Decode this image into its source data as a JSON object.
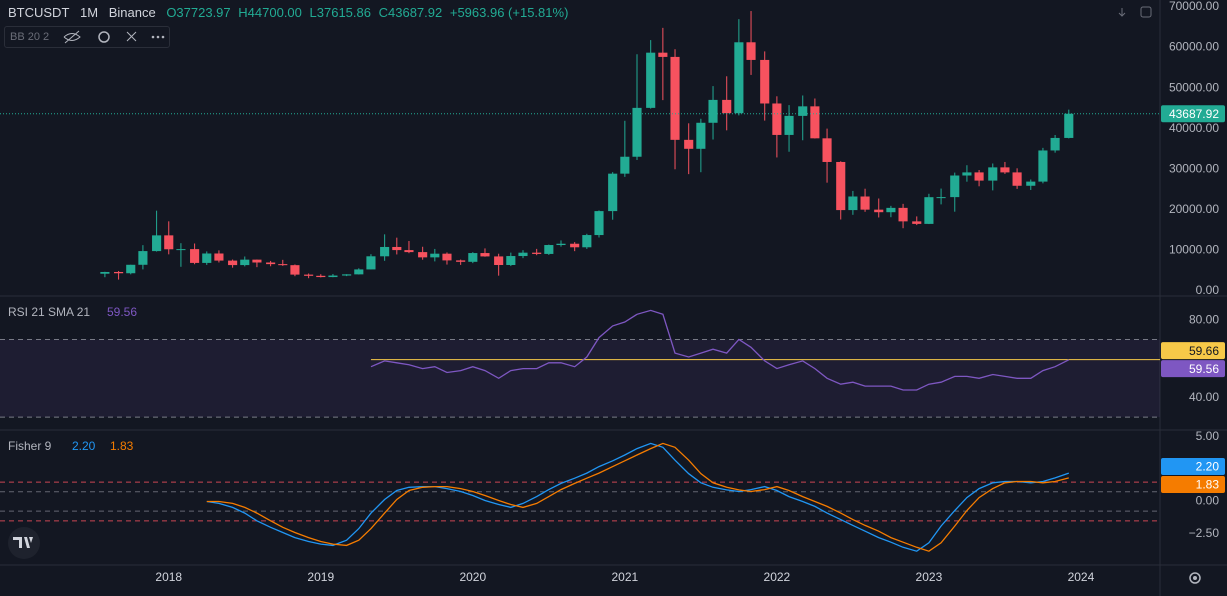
{
  "header": {
    "symbol": "BTCUSDT",
    "interval": "1M",
    "exchange": "Binance",
    "ohlc": [
      "O37723.97",
      "H44700.00",
      "L37615.86",
      "C43687.92"
    ],
    "change": "+5963.96 (+15.81%)",
    "indicator": "BB 20 2"
  },
  "chart_data": [
    {
      "type": "candlestick",
      "up_color": "#22ab94",
      "down_color": "#f7525f",
      "x": [
        2017.58,
        2017.67,
        2017.75,
        2017.83,
        2017.92,
        2018,
        2018.08,
        2018.17,
        2018.25,
        2018.33,
        2018.42,
        2018.5,
        2018.58,
        2018.67,
        2018.75,
        2018.83,
        2018.92,
        2019,
        2019.08,
        2019.17,
        2019.25,
        2019.33,
        2019.42,
        2019.5,
        2019.58,
        2019.67,
        2019.75,
        2019.83,
        2019.92,
        2020,
        2020.08,
        2020.17,
        2020.25,
        2020.33,
        2020.42,
        2020.5,
        2020.58,
        2020.67,
        2020.75,
        2020.83,
        2020.92,
        2021,
        2021.08,
        2021.17,
        2021.25,
        2021.33,
        2021.42,
        2021.5,
        2021.58,
        2021.67,
        2021.75,
        2021.83,
        2021.92,
        2022,
        2022.08,
        2022.17,
        2022.25,
        2022.33,
        2022.42,
        2022.5,
        2022.58,
        2022.67,
        2022.75,
        2022.83,
        2022.92,
        2023,
        2023.08,
        2023.17,
        2023.25,
        2023.33,
        2023.42,
        2023.5,
        2023.58,
        2023.67,
        2023.75,
        2023.83,
        2023.92
      ],
      "open": [
        4261,
        4689,
        4378,
        6463,
        9838,
        13716,
        10285,
        10326,
        6923,
        9246,
        7494,
        6391,
        7730,
        7025,
        6626,
        6371,
        4041,
        3743,
        3437,
        3813,
        4103,
        5320,
        8555,
        10854,
        10085,
        9588,
        8293,
        9199,
        7546,
        7195,
        9353,
        8524,
        6410,
        8620,
        9448,
        9138,
        11335,
        11649,
        10776,
        13791,
        19695,
        28923,
        33092,
        45135,
        58740,
        57694,
        37253,
        35045,
        41461,
        47100,
        43824,
        61299,
        56950,
        46216,
        38466,
        43160,
        45510,
        37630,
        31801,
        19942,
        23293,
        20050,
        19423,
        20490,
        17164,
        16542,
        23125,
        23141,
        28465,
        29233,
        27210,
        30472,
        29232,
        25940,
        26962,
        34639,
        37723.97
      ],
      "high": [
        4745,
        4939,
        6470,
        11300,
        19798,
        17176,
        11786,
        11710,
        9759,
        10020,
        7754,
        8507,
        7760,
        7410,
        7680,
        6540,
        4313,
        4140,
        4198,
        4140,
        5600,
        9074,
        13970,
        13147,
        12325,
        10905,
        10370,
        9510,
        7750,
        9575,
        10500,
        9188,
        9460,
        10067,
        10380,
        11444,
        12468,
        12050,
        14100,
        19863,
        29300,
        41950,
        58352,
        61844,
        64854,
        59592,
        41330,
        42448,
        50500,
        52920,
        67000,
        69000,
        59053,
        47990,
        45821,
        48190,
        47444,
        40023,
        31982,
        24668,
        25211,
        22800,
        20988,
        21480,
        18387,
        23960,
        25250,
        29184,
        31000,
        29820,
        31431,
        31804,
        30244,
        27483,
        35280,
        38450,
        44700
      ],
      "low": [
        3400,
        2817,
        4110,
        5325,
        9722,
        9036,
        5968,
        6600,
        6430,
        7032,
        5750,
        6070,
        5880,
        6100,
        6205,
        3652,
        3157,
        3349,
        3400,
        3672,
        4067,
        5300,
        7444,
        9010,
        9320,
        7710,
        7300,
        6515,
        6435,
        6871,
        8445,
        3782,
        6150,
        8100,
        8833,
        8893,
        10936,
        9825,
        10374,
        13195,
        17572,
        28130,
        32296,
        44950,
        47044,
        30000,
        28805,
        29278,
        37332,
        39600,
        43283,
        53256,
        42000,
        32917,
        34322,
        37155,
        37578,
        26700,
        17622,
        18781,
        19520,
        18125,
        18190,
        15476,
        16256,
        16499,
        21351,
        19549,
        26942,
        25811,
        24800,
        28861,
        25166,
        24901,
        26538,
        34097,
        37615.86
      ],
      "close": [
        4689,
        4378,
        6463,
        9838,
        13716,
        10285,
        10326,
        6923,
        9246,
        7494,
        6391,
        7730,
        7025,
        6626,
        6371,
        4041,
        3743,
        3437,
        3813,
        4103,
        5320,
        8555,
        10854,
        10085,
        9588,
        8293,
        9199,
        7546,
        7195,
        9353,
        8524,
        6410,
        8620,
        9448,
        9138,
        11335,
        11649,
        10776,
        13791,
        19695,
        28923,
        33092,
        45135,
        58740,
        57694,
        37253,
        35045,
        41461,
        47100,
        43824,
        61299,
        56950,
        46216,
        38466,
        43160,
        45510,
        37630,
        31801,
        19942,
        23293,
        20050,
        19423,
        20490,
        17164,
        16542,
        23125,
        23141,
        28465,
        29233,
        27210,
        30472,
        29232,
        25940,
        26962,
        34639,
        37723.97,
        43687.92
      ],
      "xlim": [
        2016.89,
        2024.52
      ],
      "xticks": [
        2018,
        2019,
        2020,
        2021,
        2022,
        2023,
        2024
      ],
      "ylim": [
        -1230,
        71720
      ],
      "yticks": [
        {
          "value": 0,
          "label": "0.00"
        },
        {
          "value": 10000,
          "label": "10000.00"
        },
        {
          "value": 20000,
          "label": "20000.00"
        },
        {
          "value": 30000,
          "label": "30000.00"
        },
        {
          "value": 40000,
          "label": "40000.00"
        },
        {
          "value": 50000,
          "label": "50000.00"
        },
        {
          "value": 60000,
          "label": "60000.00"
        },
        {
          "value": 70000,
          "label": "70000.00"
        }
      ]
    },
    {
      "type": "line",
      "title": "RSI 21 SMA 21",
      "xlim": [
        2016.89,
        2024.52
      ],
      "x": [
        2019.33,
        2019.42,
        2019.5,
        2019.58,
        2019.67,
        2019.75,
        2019.83,
        2019.92,
        2020,
        2020.08,
        2020.17,
        2020.25,
        2020.33,
        2020.42,
        2020.5,
        2020.58,
        2020.67,
        2020.75,
        2020.83,
        2020.92,
        2021,
        2021.08,
        2021.17,
        2021.25,
        2021.33,
        2021.42,
        2021.5,
        2021.58,
        2021.67,
        2021.75,
        2021.83,
        2021.92,
        2022,
        2022.08,
        2022.17,
        2022.25,
        2022.33,
        2022.42,
        2022.5,
        2022.58,
        2022.67,
        2022.75,
        2022.83,
        2022.92,
        2023,
        2023.08,
        2023.17,
        2023.25,
        2023.33,
        2023.42,
        2023.5,
        2023.58,
        2023.67,
        2023.75,
        2023.83,
        2023.92
      ],
      "series": [
        {
          "color": "#7e57c2",
          "values": [
            56,
            59,
            58,
            57,
            55,
            56,
            53,
            54,
            56,
            54,
            50,
            54,
            55,
            55,
            58,
            58,
            56,
            61,
            71,
            77,
            79,
            83,
            85,
            83,
            63,
            61,
            63,
            65,
            63,
            70,
            66,
            59,
            55,
            57,
            59,
            55,
            50,
            47,
            48,
            46,
            46,
            46,
            44,
            44,
            47,
            48,
            51,
            51,
            50,
            52,
            51,
            50,
            50,
            54,
            56,
            59.56
          ]
        }
      ],
      "sma": 59.66,
      "sma_color": "#f7c948",
      "bands": [
        30,
        70
      ],
      "ylim": [
        23.9,
        91.9
      ],
      "yticks": [
        {
          "value": 40,
          "label": "40.00"
        },
        {
          "value": 80,
          "label": "80.00"
        }
      ]
    },
    {
      "type": "line",
      "title": "Fisher 9",
      "xlim": [
        2016.89,
        2024.52
      ],
      "x": [
        2018.25,
        2018.33,
        2018.42,
        2018.5,
        2018.58,
        2018.67,
        2018.75,
        2018.83,
        2018.92,
        2019,
        2019.08,
        2019.17,
        2019.25,
        2019.33,
        2019.42,
        2019.5,
        2019.58,
        2019.67,
        2019.75,
        2019.83,
        2019.92,
        2020,
        2020.08,
        2020.17,
        2020.25,
        2020.33,
        2020.42,
        2020.5,
        2020.58,
        2020.67,
        2020.75,
        2020.83,
        2020.92,
        2021,
        2021.08,
        2021.17,
        2021.25,
        2021.33,
        2021.42,
        2021.5,
        2021.58,
        2021.67,
        2021.75,
        2021.83,
        2021.92,
        2022,
        2022.08,
        2022.17,
        2022.25,
        2022.33,
        2022.42,
        2022.5,
        2022.58,
        2022.67,
        2022.75,
        2022.83,
        2022.92,
        2023,
        2023.08,
        2023.17,
        2023.25,
        2023.33,
        2023.42,
        2023.5,
        2023.58,
        2023.67,
        2023.75,
        2023.83,
        2023.92
      ],
      "series": [
        {
          "color": "#2196f3",
          "last_label": "2.20",
          "values": [
            0,
            -0.15,
            -0.46,
            -0.9,
            -1.5,
            -2,
            -2.4,
            -2.8,
            -3.1,
            -3.3,
            -3.4,
            -3,
            -2.1,
            -0.9,
            0.15,
            0.85,
            1.1,
            1.15,
            1.15,
            1,
            0.77,
            0.46,
            0.08,
            -0.23,
            -0.46,
            -0.15,
            0.38,
            0.92,
            1.4,
            1.8,
            2.2,
            2.7,
            3.15,
            3.6,
            4.1,
            4.5,
            4.2,
            3.2,
            2.15,
            1.45,
            1.1,
            0.9,
            0.77,
            0.92,
            1.15,
            0.85,
            0.38,
            0,
            -0.38,
            -0.9,
            -1.4,
            -1.85,
            -2.3,
            -2.8,
            -3.15,
            -3.55,
            -3.85,
            -3.2,
            -1.9,
            -0.7,
            0.3,
            1,
            1.45,
            1.55,
            1.55,
            1.45,
            1.55,
            1.83,
            2.2
          ]
        },
        {
          "color": "#f57c00",
          "values": [
            0,
            0,
            -0.15,
            -0.46,
            -0.9,
            -1.5,
            -2,
            -2.4,
            -2.8,
            -3.1,
            -3.3,
            -3.4,
            -3,
            -2.1,
            -0.9,
            0.15,
            0.85,
            1.1,
            1.15,
            1.15,
            1,
            0.77,
            0.46,
            0.08,
            -0.23,
            -0.46,
            -0.15,
            0.38,
            0.92,
            1.4,
            1.8,
            2.2,
            2.7,
            3.15,
            3.6,
            4.1,
            4.5,
            4.2,
            3.2,
            2.15,
            1.45,
            1.1,
            0.9,
            0.77,
            0.92,
            1.15,
            0.85,
            0.38,
            0,
            -0.38,
            -0.9,
            -1.4,
            -1.85,
            -2.3,
            -2.8,
            -3.15,
            -3.55,
            -3.85,
            -3.2,
            -1.9,
            -0.7,
            0.3,
            1,
            1.45,
            1.55,
            1.55,
            1.45,
            1.55,
            1.83
          ]
        }
      ],
      "levels": [
        1.5,
        0.75,
        -0.75,
        -1.5
      ],
      "ylim": [
        -4.92,
        5.46
      ],
      "yticks": [
        {
          "value": 5,
          "label": "5.00"
        },
        {
          "value": 0,
          "label": "0.00"
        },
        {
          "value": -2.5,
          "label": "−2.50"
        }
      ]
    }
  ]
}
